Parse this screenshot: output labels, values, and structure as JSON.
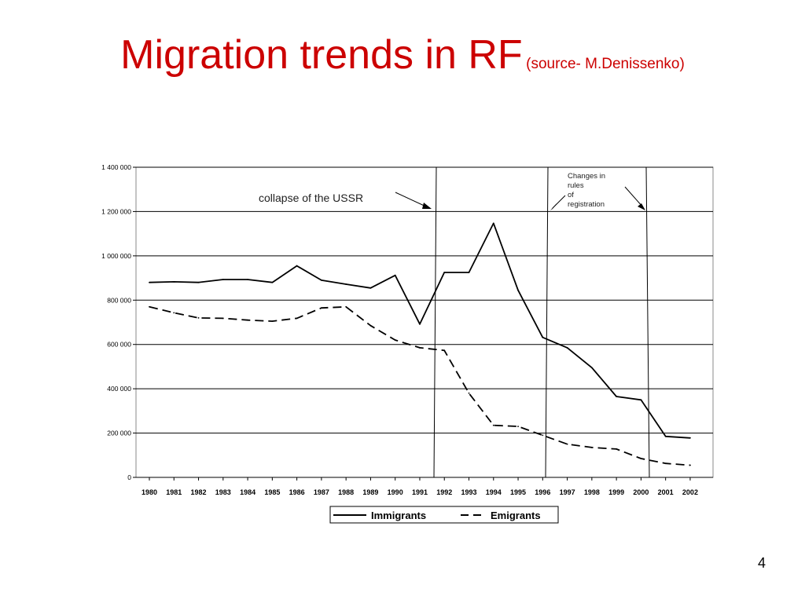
{
  "slide": {
    "title": "Migration trends in RF",
    "subtitle": "(source- M.Denissenko)",
    "page_number": "4"
  },
  "chart_data": {
    "type": "line",
    "title": "",
    "xlabel": "",
    "ylabel": "",
    "categories": [
      "1980",
      "1981",
      "1982",
      "1983",
      "1984",
      "1985",
      "1986",
      "1987",
      "1988",
      "1989",
      "1990",
      "1991",
      "1992",
      "1993",
      "1994",
      "1995",
      "1996",
      "1997",
      "1998",
      "1999",
      "2000",
      "2001",
      "2002"
    ],
    "ylim": [
      0,
      1400000
    ],
    "yticks": [
      0,
      200000,
      400000,
      600000,
      800000,
      1000000,
      1200000,
      1400000
    ],
    "ytick_labels": [
      "0",
      "200 000",
      "400 000",
      "600 000",
      "800 000",
      "1 000 000",
      "1 200 000",
      "1 400 000"
    ],
    "grid": "horizontal",
    "series": [
      {
        "name": "Immigrants",
        "style": "solid",
        "values": [
          880000,
          883000,
          880000,
          893000,
          893000,
          880000,
          955000,
          890000,
          872000,
          855000,
          912000,
          692000,
          925000,
          925000,
          1147000,
          845000,
          632000,
          585000,
          495000,
          365000,
          350000,
          185000,
          178000
        ]
      },
      {
        "name": "Emigrants",
        "style": "dashed",
        "values": [
          770000,
          743000,
          720000,
          718000,
          710000,
          705000,
          718000,
          765000,
          770000,
          685000,
          620000,
          585000,
          573000,
          380000,
          235000,
          230000,
          190000,
          150000,
          135000,
          128000,
          85000,
          63000,
          55000
        ]
      }
    ],
    "legend": {
      "placement": "bottom-center"
    },
    "vertical_lines": [
      "1991-1992",
      "1996",
      "2000"
    ],
    "annotations": [
      {
        "text": "collapse of the USSR",
        "points_to": "1991"
      },
      {
        "text": "Changes  in\nrules\nof\nregistration",
        "points_to": [
          "1996",
          "2000"
        ]
      }
    ],
    "colors": {
      "lines": "#000000",
      "grid": "#000000",
      "title": "#cc0000"
    }
  }
}
